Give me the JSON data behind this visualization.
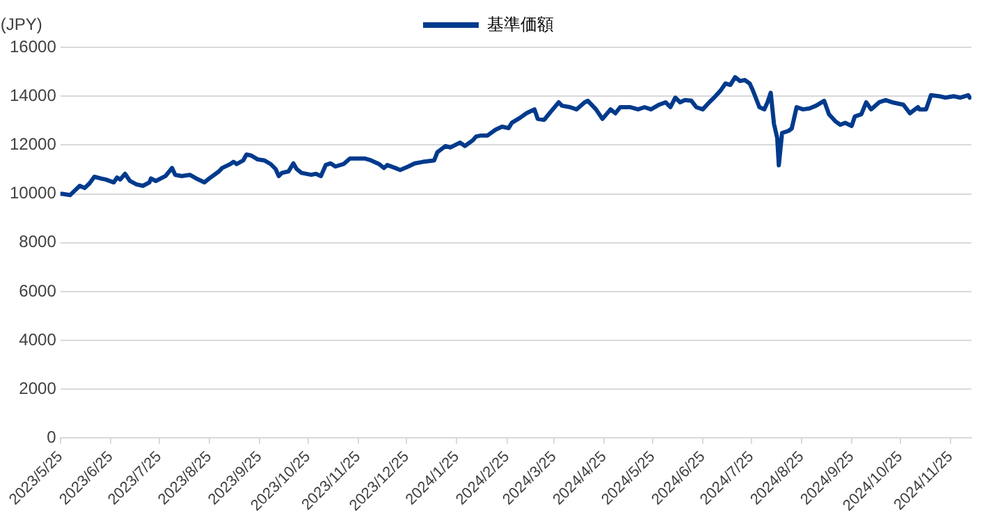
{
  "chart_data": {
    "type": "line",
    "ylabel": "(JPY)",
    "xlim": [
      "2023-05-25",
      "2024-12-08"
    ],
    "xticks": [
      {
        "value": "2023-05-25",
        "label": "2023/5/25"
      },
      {
        "value": "2023-06-25",
        "label": "2023/6/25"
      },
      {
        "value": "2023-07-25",
        "label": "2023/7/25"
      },
      {
        "value": "2023-08-25",
        "label": "2023/8/25"
      },
      {
        "value": "2023-09-25",
        "label": "2023/9/25"
      },
      {
        "value": "2023-10-25",
        "label": "2023/10/25"
      },
      {
        "value": "2023-11-25",
        "label": "2023/11/25"
      },
      {
        "value": "2023-12-25",
        "label": "2023/12/25"
      },
      {
        "value": "2024-01-25",
        "label": "2024/1/25"
      },
      {
        "value": "2024-02-25",
        "label": "2024/2/25"
      },
      {
        "value": "2024-03-25",
        "label": "2024/3/25"
      },
      {
        "value": "2024-04-25",
        "label": "2024/4/25"
      },
      {
        "value": "2024-05-25",
        "label": "2024/5/25"
      },
      {
        "value": "2024-06-25",
        "label": "2024/6/25"
      },
      {
        "value": "2024-07-25",
        "label": "2024/7/25"
      },
      {
        "value": "2024-08-25",
        "label": "2024/8/25"
      },
      {
        "value": "2024-09-25",
        "label": "2024/9/25"
      },
      {
        "value": "2024-10-25",
        "label": "2024/10/25"
      },
      {
        "value": "2024-11-25",
        "label": "2024/11/25"
      }
    ],
    "ylim": [
      0,
      16000
    ],
    "yticks": [
      0,
      2000,
      4000,
      6000,
      8000,
      10000,
      12000,
      14000,
      16000
    ],
    "grid": "y",
    "legend": "top",
    "marker": "none",
    "line_style": "solid",
    "x": [
      "2023-05-25",
      "2023-05-26",
      "2023-05-31",
      "2023-06-03",
      "2023-06-06",
      "2023-06-09",
      "2023-06-12",
      "2023-06-15",
      "2023-06-19",
      "2023-06-22",
      "2023-06-27",
      "2023-06-29",
      "2023-07-01",
      "2023-07-04",
      "2023-07-07",
      "2023-07-11",
      "2023-07-15",
      "2023-07-19",
      "2023-07-20",
      "2023-07-23",
      "2023-07-29",
      "2023-08-02",
      "2023-08-04",
      "2023-08-08",
      "2023-08-13",
      "2023-08-17",
      "2023-08-22",
      "2023-08-25",
      "2023-08-31",
      "2023-09-02",
      "2023-09-07",
      "2023-09-09",
      "2023-09-11",
      "2023-09-15",
      "2023-09-17",
      "2023-09-20",
      "2023-09-24",
      "2023-09-28",
      "2023-10-02",
      "2023-10-05",
      "2023-10-07",
      "2023-10-09",
      "2023-10-13",
      "2023-10-16",
      "2023-10-18",
      "2023-10-21",
      "2023-10-27",
      "2023-10-30",
      "2023-11-02",
      "2023-11-05",
      "2023-11-08",
      "2023-11-11",
      "2023-11-16",
      "2023-11-20",
      "2023-11-25",
      "2023-11-29",
      "2023-12-03",
      "2023-12-08",
      "2023-12-11",
      "2023-12-13",
      "2023-12-18",
      "2023-12-21",
      "2023-12-26",
      "2023-12-30",
      "2024-01-04",
      "2024-01-11",
      "2024-01-13",
      "2024-01-18",
      "2024-01-21",
      "2024-01-24",
      "2024-01-27",
      "2024-01-30",
      "2024-02-04",
      "2024-02-06",
      "2024-02-09",
      "2024-02-13",
      "2024-02-18",
      "2024-02-22",
      "2024-02-26",
      "2024-02-28",
      "2024-03-04",
      "2024-03-08",
      "2024-03-13",
      "2024-03-15",
      "2024-03-19",
      "2024-03-23",
      "2024-03-28",
      "2024-03-30",
      "2024-04-04",
      "2024-04-08",
      "2024-04-13",
      "2024-04-15",
      "2024-04-20",
      "2024-04-24",
      "2024-04-29",
      "2024-05-02",
      "2024-05-05",
      "2024-05-11",
      "2024-05-16",
      "2024-05-20",
      "2024-05-24",
      "2024-05-29",
      "2024-06-02",
      "2024-06-05",
      "2024-06-08",
      "2024-06-11",
      "2024-06-14",
      "2024-06-18",
      "2024-06-21",
      "2024-06-25",
      "2024-06-29",
      "2024-07-02",
      "2024-07-06",
      "2024-07-09",
      "2024-07-12",
      "2024-07-15",
      "2024-07-18",
      "2024-07-21",
      "2024-07-24",
      "2024-07-26",
      "2024-07-30",
      "2024-08-02",
      "2024-08-04",
      "2024-08-06",
      "2024-08-08",
      "2024-08-10",
      "2024-08-11",
      "2024-08-13",
      "2024-08-17",
      "2024-08-19",
      "2024-08-22",
      "2024-08-26",
      "2024-08-30",
      "2024-09-03",
      "2024-09-08",
      "2024-09-11",
      "2024-09-15",
      "2024-09-18",
      "2024-09-21",
      "2024-09-25",
      "2024-09-27",
      "2024-10-01",
      "2024-10-04",
      "2024-10-07",
      "2024-10-12",
      "2024-10-16",
      "2024-10-20",
      "2024-10-27",
      "2024-10-31",
      "2024-11-05",
      "2024-11-06",
      "2024-11-10",
      "2024-11-13",
      "2024-11-18",
      "2024-11-22",
      "2024-11-27",
      "2024-12-01",
      "2024-12-06",
      "2024-12-07"
    ],
    "series": [
      {
        "name": "基準価額",
        "color": "#003a8c",
        "values": [
          10000,
          10000,
          9950,
          10140,
          10330,
          10240,
          10430,
          10700,
          10630,
          10590,
          10470,
          10670,
          10590,
          10820,
          10530,
          10390,
          10330,
          10470,
          10630,
          10530,
          10730,
          11060,
          10780,
          10730,
          10780,
          10630,
          10470,
          10630,
          10920,
          11060,
          11220,
          11310,
          11220,
          11370,
          11610,
          11570,
          11410,
          11370,
          11220,
          11020,
          10730,
          10860,
          10920,
          11250,
          11020,
          10860,
          10780,
          10820,
          10730,
          11180,
          11250,
          11120,
          11220,
          11450,
          11450,
          11450,
          11370,
          11220,
          11060,
          11180,
          11060,
          10980,
          11120,
          11250,
          11310,
          11370,
          11710,
          11960,
          11900,
          12000,
          12100,
          11960,
          12200,
          12350,
          12390,
          12390,
          12630,
          12750,
          12690,
          12910,
          13110,
          13300,
          13460,
          13070,
          13030,
          13360,
          13750,
          13610,
          13550,
          13460,
          13750,
          13810,
          13460,
          13070,
          13460,
          13300,
          13550,
          13550,
          13460,
          13550,
          13460,
          13650,
          13750,
          13550,
          13940,
          13750,
          13840,
          13810,
          13550,
          13460,
          13750,
          13940,
          14230,
          14520,
          14460,
          14780,
          14620,
          14660,
          14520,
          14230,
          13550,
          13460,
          13750,
          14140,
          12870,
          12290,
          11170,
          12490,
          12580,
          12680,
          13550,
          13460,
          13500,
          13610,
          13810,
          13260,
          12970,
          12830,
          12910,
          12780,
          13170,
          13260,
          13750,
          13460,
          13750,
          13840,
          13750,
          13650,
          13300,
          13550,
          13460,
          13460,
          14040,
          14000,
          13940,
          14000,
          13940,
          14040,
          13940
        ]
      }
    ]
  }
}
